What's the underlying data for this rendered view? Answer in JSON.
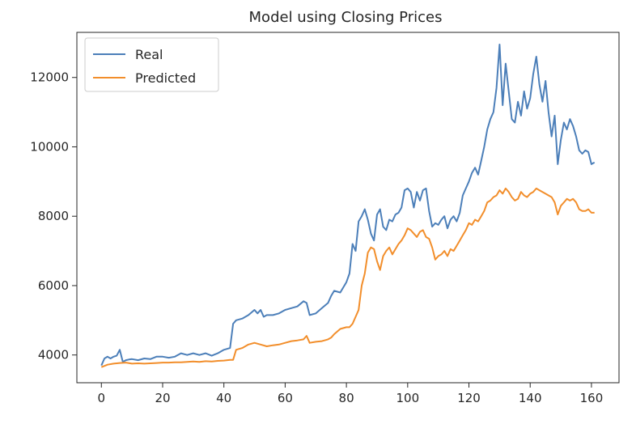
{
  "chart_data": {
    "type": "line",
    "title": "Model using Closing Prices",
    "xlabel": "",
    "ylabel": "",
    "xlim": [
      -8,
      169
    ],
    "ylim": [
      3200,
      13300
    ],
    "xticks": [
      0,
      20,
      40,
      60,
      80,
      100,
      120,
      140,
      160
    ],
    "yticks": [
      4000,
      6000,
      8000,
      10000,
      12000
    ],
    "grid": false,
    "legend_position": "upper-left",
    "series": [
      {
        "name": "Real",
        "color": "#4c7fb9",
        "x": [
          0,
          1,
          2,
          3,
          4,
          5,
          6,
          7,
          8,
          9,
          10,
          12,
          14,
          16,
          18,
          20,
          22,
          24,
          26,
          28,
          30,
          32,
          34,
          36,
          38,
          40,
          42,
          43,
          44,
          46,
          48,
          50,
          51,
          52,
          53,
          54,
          56,
          58,
          60,
          62,
          64,
          66,
          67,
          68,
          70,
          72,
          74,
          75,
          76,
          78,
          80,
          81,
          82,
          83,
          84,
          85,
          86,
          87,
          88,
          89,
          90,
          91,
          92,
          93,
          94,
          95,
          96,
          97,
          98,
          99,
          100,
          101,
          102,
          103,
          104,
          105,
          106,
          107,
          108,
          109,
          110,
          111,
          112,
          113,
          114,
          115,
          116,
          117,
          118,
          119,
          120,
          121,
          122,
          123,
          124,
          125,
          126,
          127,
          128,
          129,
          130,
          131,
          132,
          133,
          134,
          135,
          136,
          137,
          138,
          139,
          140,
          141,
          142,
          143,
          144,
          145,
          146,
          147,
          148,
          149,
          150,
          151,
          152,
          153,
          154,
          155,
          156,
          157,
          158,
          159,
          160,
          161
        ],
        "values": [
          3700,
          3900,
          3950,
          3900,
          3950,
          3980,
          4150,
          3800,
          3850,
          3870,
          3880,
          3850,
          3900,
          3880,
          3950,
          3950,
          3920,
          3950,
          4050,
          4000,
          4050,
          4000,
          4050,
          3980,
          4050,
          4150,
          4200,
          4900,
          5000,
          5050,
          5150,
          5300,
          5200,
          5300,
          5100,
          5150,
          5150,
          5200,
          5300,
          5350,
          5400,
          5550,
          5500,
          5150,
          5200,
          5350,
          5500,
          5700,
          5850,
          5800,
          6100,
          6350,
          7200,
          7000,
          7850,
          8000,
          8200,
          7900,
          7500,
          7300,
          8050,
          8200,
          7700,
          7600,
          7900,
          7850,
          8050,
          8100,
          8250,
          8750,
          8800,
          8700,
          8250,
          8700,
          8450,
          8750,
          8800,
          8150,
          7700,
          7800,
          7750,
          7900,
          8000,
          7650,
          7900,
          8000,
          7850,
          8100,
          8600,
          8800,
          9000,
          9250,
          9400,
          9200,
          9600,
          10000,
          10500,
          10800,
          11000,
          11700,
          12950,
          11200,
          12400,
          11600,
          10800,
          10700,
          11300,
          10900,
          11600,
          11100,
          11400,
          12100,
          12600,
          11800,
          11300,
          11900,
          11000,
          10300,
          10900,
          9500,
          10200,
          10700,
          10500,
          10800,
          10600,
          10300,
          9900,
          9800,
          9900,
          9850,
          9500,
          9550
        ]
      },
      {
        "name": "Predicted",
        "color": "#f28e2b",
        "x": [
          0,
          2,
          4,
          6,
          8,
          10,
          12,
          14,
          16,
          18,
          20,
          22,
          24,
          26,
          28,
          30,
          32,
          34,
          36,
          38,
          40,
          42,
          43,
          44,
          46,
          48,
          50,
          52,
          54,
          56,
          58,
          60,
          62,
          64,
          66,
          67,
          68,
          70,
          72,
          74,
          75,
          76,
          78,
          80,
          81,
          82,
          83,
          84,
          85,
          86,
          87,
          88,
          89,
          90,
          91,
          92,
          93,
          94,
          95,
          96,
          97,
          98,
          99,
          100,
          101,
          102,
          103,
          104,
          105,
          106,
          107,
          108,
          109,
          110,
          111,
          112,
          113,
          114,
          115,
          116,
          117,
          118,
          119,
          120,
          121,
          122,
          123,
          124,
          125,
          126,
          127,
          128,
          129,
          130,
          131,
          132,
          133,
          134,
          135,
          136,
          137,
          138,
          139,
          140,
          141,
          142,
          143,
          144,
          145,
          146,
          147,
          148,
          149,
          150,
          151,
          152,
          153,
          154,
          155,
          156,
          157,
          158,
          159,
          160,
          161
        ],
        "values": [
          3650,
          3720,
          3750,
          3770,
          3780,
          3750,
          3760,
          3750,
          3760,
          3770,
          3780,
          3780,
          3790,
          3790,
          3800,
          3810,
          3800,
          3820,
          3810,
          3830,
          3840,
          3860,
          3860,
          4150,
          4200,
          4300,
          4350,
          4300,
          4250,
          4280,
          4300,
          4350,
          4400,
          4420,
          4450,
          4550,
          4350,
          4380,
          4400,
          4450,
          4500,
          4600,
          4750,
          4800,
          4800,
          4900,
          5100,
          5300,
          6000,
          6350,
          6950,
          7100,
          7050,
          6700,
          6450,
          6850,
          7000,
          7100,
          6900,
          7050,
          7200,
          7300,
          7450,
          7650,
          7600,
          7500,
          7400,
          7550,
          7600,
          7400,
          7350,
          7100,
          6750,
          6850,
          6900,
          7000,
          6850,
          7050,
          7000,
          7150,
          7300,
          7450,
          7600,
          7800,
          7750,
          7900,
          7850,
          8000,
          8150,
          8400,
          8450,
          8550,
          8600,
          8750,
          8650,
          8800,
          8700,
          8550,
          8450,
          8500,
          8700,
          8600,
          8550,
          8650,
          8700,
          8800,
          8750,
          8700,
          8650,
          8600,
          8550,
          8400,
          8050,
          8300,
          8400,
          8500,
          8450,
          8500,
          8400,
          8200,
          8150,
          8150,
          8200,
          8100,
          8100
        ]
      }
    ]
  }
}
